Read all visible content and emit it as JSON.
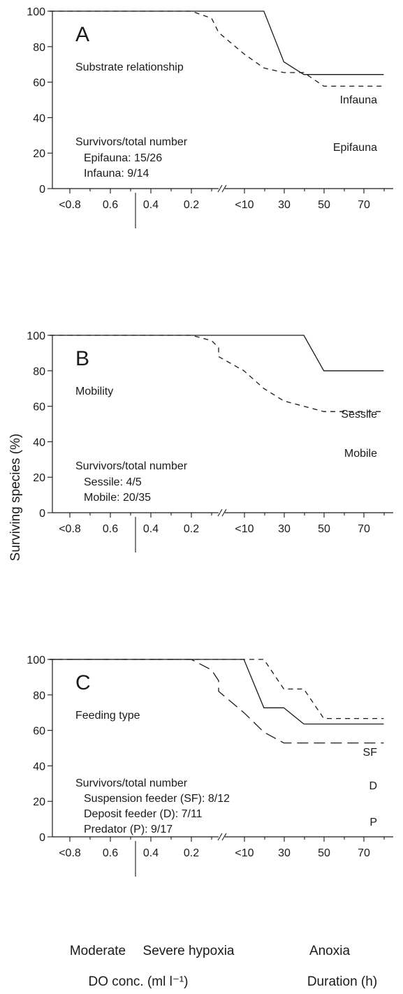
{
  "figure": {
    "ylabel": "Surviving species (%)",
    "bottom_labels": {
      "phase_moderate": "Moderate",
      "phase_severe": "Severe hypoxia",
      "phase_anoxia": "Anoxia",
      "do_axis": "DO conc. (ml l⁻¹)",
      "duration_axis": "Duration (h)"
    }
  },
  "chart_data": [
    {
      "type": "line",
      "letter": "A",
      "subtitle": "Substrate relationship",
      "ylim": [
        0,
        100
      ],
      "yticks": [
        "0",
        "20",
        "40",
        "60",
        "80",
        "100"
      ],
      "x_left": {
        "ticks": [
          "<0.8",
          "0.6",
          "0.4",
          "0.2"
        ]
      },
      "x_right": {
        "ticks": [
          "<10",
          "30",
          "50",
          "70"
        ]
      },
      "survivors_title": "Survivors/total number",
      "survivors": [
        "Epifauna: 15/26",
        "Infauna: 9/14"
      ],
      "series": [
        {
          "name": "Infauna",
          "style": "solid",
          "points": [
            [
              0.9,
              100
            ],
            [
              0.2,
              100
            ],
            [
              0,
              100
            ],
            [
              20,
              100
            ],
            [
              30,
              71.4
            ],
            [
              40,
              64.3
            ],
            [
              80,
              64.3
            ]
          ]
        },
        {
          "name": "Epifauna",
          "style": "dashed",
          "points": [
            [
              0.9,
              100
            ],
            [
              0.3,
              100
            ],
            [
              0.2,
              100
            ],
            [
              0.1,
              96
            ],
            [
              0,
              88
            ],
            [
              10,
              76
            ],
            [
              20,
              68
            ],
            [
              30,
              65.4
            ],
            [
              40,
              65.4
            ],
            [
              50,
              57.7
            ],
            [
              80,
              57.7
            ]
          ]
        }
      ]
    },
    {
      "type": "line",
      "letter": "B",
      "subtitle": "Mobility",
      "ylim": [
        0,
        100
      ],
      "yticks": [
        "0",
        "20",
        "40",
        "60",
        "80",
        "100"
      ],
      "x_left": {
        "ticks": [
          "<0.8",
          "0.6",
          "0.4",
          "0.2"
        ]
      },
      "x_right": {
        "ticks": [
          "<10",
          "30",
          "50",
          "70"
        ]
      },
      "survivors_title": "Survivors/total number",
      "survivors": [
        "Sessile: 4/5",
        "Mobile: 20/35"
      ],
      "series": [
        {
          "name": "Sessile",
          "style": "solid",
          "points": [
            [
              0.9,
              100
            ],
            [
              0,
              100
            ],
            [
              40,
              100
            ],
            [
              50,
              80
            ],
            [
              80,
              80
            ]
          ]
        },
        {
          "name": "Mobile",
          "style": "dashed",
          "points": [
            [
              0.9,
              100
            ],
            [
              0.2,
              100
            ],
            [
              0.1,
              97
            ],
            [
              0,
              93
            ],
            [
              0,
              88
            ],
            [
              10,
              80
            ],
            [
              20,
              70
            ],
            [
              30,
              63
            ],
            [
              40,
              60
            ],
            [
              50,
              57
            ],
            [
              80,
              57
            ]
          ]
        }
      ]
    },
    {
      "type": "line",
      "letter": "C",
      "subtitle": "Feeding type",
      "ylim": [
        0,
        100
      ],
      "yticks": [
        "0",
        "20",
        "40",
        "60",
        "80",
        "100"
      ],
      "x_left": {
        "ticks": [
          "<0.8",
          "0.6",
          "0.4",
          "0.2"
        ]
      },
      "x_right": {
        "ticks": [
          "<10",
          "30",
          "50",
          "70"
        ]
      },
      "survivors_title": "Survivors/total number",
      "survivors": [
        "Suspension feeder (SF): 8/12",
        "Deposit feeder (D): 7/11",
        "Predator (P): 9/17"
      ],
      "series": [
        {
          "name": "SF",
          "style": "dashed",
          "points": [
            [
              0.9,
              100
            ],
            [
              0,
              100
            ],
            [
              20,
              100
            ],
            [
              30,
              83.3
            ],
            [
              40,
              83.3
            ],
            [
              50,
              66.7
            ],
            [
              80,
              66.7
            ]
          ]
        },
        {
          "name": "D",
          "style": "solid",
          "points": [
            [
              0.9,
              100
            ],
            [
              0,
              100
            ],
            [
              10,
              100
            ],
            [
              20,
              72.7
            ],
            [
              30,
              72.7
            ],
            [
              40,
              63.6
            ],
            [
              80,
              63.6
            ]
          ]
        },
        {
          "name": "P",
          "style": "longdash",
          "points": [
            [
              0.9,
              100
            ],
            [
              0.2,
              100
            ],
            [
              0.1,
              94
            ],
            [
              0,
              88
            ],
            [
              0,
              82
            ],
            [
              10,
              70
            ],
            [
              20,
              59
            ],
            [
              30,
              52.9
            ],
            [
              80,
              52.9
            ]
          ]
        }
      ]
    }
  ]
}
